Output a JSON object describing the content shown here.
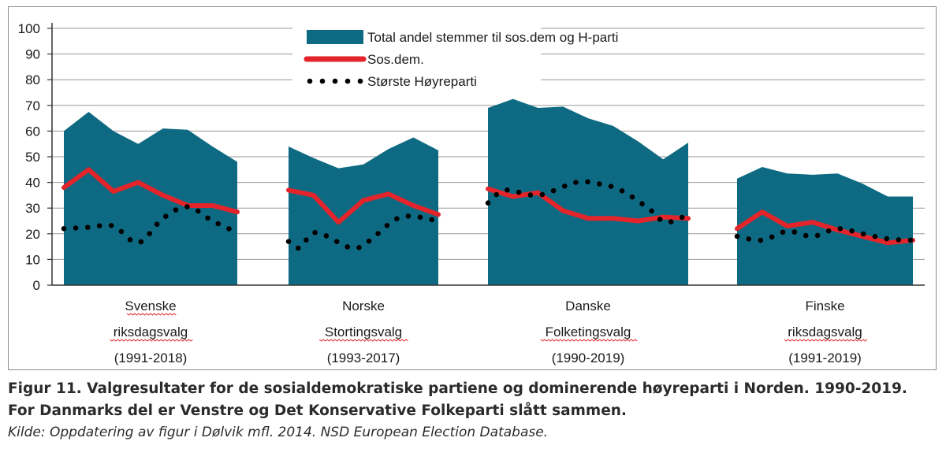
{
  "chart_data": {
    "type": "area",
    "ylim": [
      0,
      100
    ],
    "yticks": [
      "0",
      "10",
      "20",
      "30",
      "40",
      "50",
      "60",
      "70",
      "80",
      "90",
      "100"
    ],
    "legend": {
      "total": "Total andel stemmer til sos.dem og  H-parti",
      "sosdem": "Sos.dem.",
      "hoyre": "Største Høyreparti"
    },
    "colors": {
      "total": "#0e6a82",
      "sosdem": "#e3242b",
      "hoyre": "#000000",
      "grid": "#9a9a9a",
      "spell_underline": "#e3242b"
    },
    "groups": [
      {
        "name": "Svenske riksdagsvalg",
        "label_lines": [
          "Svenske",
          "riksdagsvalg",
          "(1991-2018)"
        ],
        "underline_lines": [
          0,
          1
        ],
        "total": [
          60,
          67.5,
          60,
          55,
          61,
          60.5,
          54,
          48
        ],
        "sosdem": [
          38,
          45,
          36.5,
          40,
          35,
          31,
          31,
          28.5
        ],
        "hoyre": [
          22,
          22.5,
          23,
          16.5,
          26,
          30.5,
          25,
          20.5
        ]
      },
      {
        "name": "Norske Stortingsvalg",
        "label_lines": [
          "Norske",
          "Stortingsvalg",
          "(1993-2017)"
        ],
        "underline_lines": [
          1
        ],
        "total": [
          54,
          49.5,
          45.5,
          47,
          53,
          57.5,
          52.5
        ],
        "sosdem": [
          37,
          35,
          24.5,
          33,
          35.5,
          31,
          27.5
        ],
        "hoyre": [
          17,
          14.5,
          20.5,
          14.5,
          17,
          26.5,
          25
        ],
        "hoyre_x": [
          0,
          0.45,
          1.1,
          2.5,
          3.2,
          4.5,
          6
        ]
      },
      {
        "name": "Danske Folketingsvalg",
        "label_lines": [
          "Danske",
          "Folketingsvalg",
          "(1990-2019)"
        ],
        "underline_lines": [
          1
        ],
        "total": [
          69,
          72.5,
          69,
          69.5,
          65,
          62,
          56,
          49,
          55.5
        ],
        "sosdem": [
          37.5,
          34.5,
          36,
          29,
          26,
          26,
          25,
          26.5,
          26
        ],
        "hoyre": [
          32,
          37,
          35,
          40,
          39.5,
          37,
          30,
          24.5,
          27.5
        ],
        "hoyre_x": [
          0,
          0.7,
          2.0,
          3.5,
          4.4,
          5.3,
          6.4,
          7.1,
          8
        ]
      },
      {
        "name": "Finske riksdagsvalg",
        "label_lines": [
          "Finske",
          "riksdagsvalg",
          "(1991-2019)"
        ],
        "underline_lines": [
          1
        ],
        "total": [
          41.5,
          46,
          43.5,
          43,
          43.5,
          39.5,
          34.5,
          34.5
        ],
        "sosdem": [
          22,
          28.5,
          23,
          24.5,
          21.5,
          19,
          16.5,
          17.5
        ],
        "hoyre": [
          19,
          17.5,
          21,
          19,
          22,
          20,
          18,
          17.5
        ]
      }
    ]
  },
  "caption": {
    "title": "Figur 11. Valgresultater for de sosialdemokratiske partiene og dominerende høyreparti i Norden. 1990-2019. For Danmarks del er Venstre og Det Konservative Folkeparti slått sammen.",
    "source": "Kilde: Oppdatering av figur i Dølvik mfl. 2014. NSD European Election Database."
  }
}
